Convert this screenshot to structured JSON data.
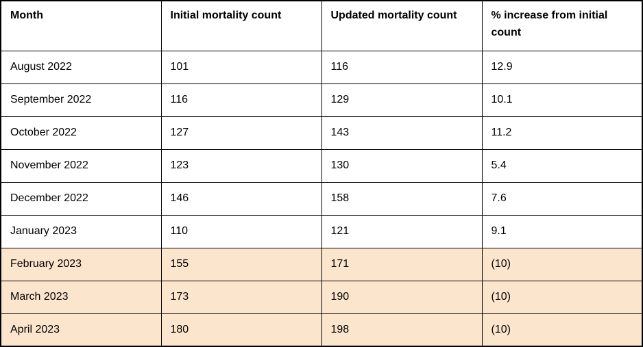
{
  "table": {
    "headers": [
      "Month",
      "Initial mortality count",
      "Updated mortality count",
      "% increase from initial count"
    ],
    "rows": [
      {
        "cells": [
          "August 2022",
          "101",
          "116",
          "12.9"
        ],
        "highlighted": false
      },
      {
        "cells": [
          "September 2022",
          "116",
          "129",
          "10.1"
        ],
        "highlighted": false
      },
      {
        "cells": [
          "October 2022",
          "127",
          "143",
          "11.2"
        ],
        "highlighted": false
      },
      {
        "cells": [
          "November 2022",
          "123",
          "130",
          "5.4"
        ],
        "highlighted": false
      },
      {
        "cells": [
          "December 2022",
          "146",
          "158",
          "7.6"
        ],
        "highlighted": false
      },
      {
        "cells": [
          "January 2023",
          "110",
          "121",
          "9.1"
        ],
        "highlighted": false
      },
      {
        "cells": [
          "February 2023",
          "155",
          "171",
          "(10)"
        ],
        "highlighted": true
      },
      {
        "cells": [
          "March 2023",
          "173",
          "190",
          "(10)"
        ],
        "highlighted": true
      },
      {
        "cells": [
          "April 2023",
          "180",
          "198",
          "(10)"
        ],
        "highlighted": true
      }
    ]
  },
  "colors": {
    "highlight_row_background": "#fce5cd",
    "border": "#000000",
    "text": "#000000",
    "background": "#ffffff"
  }
}
